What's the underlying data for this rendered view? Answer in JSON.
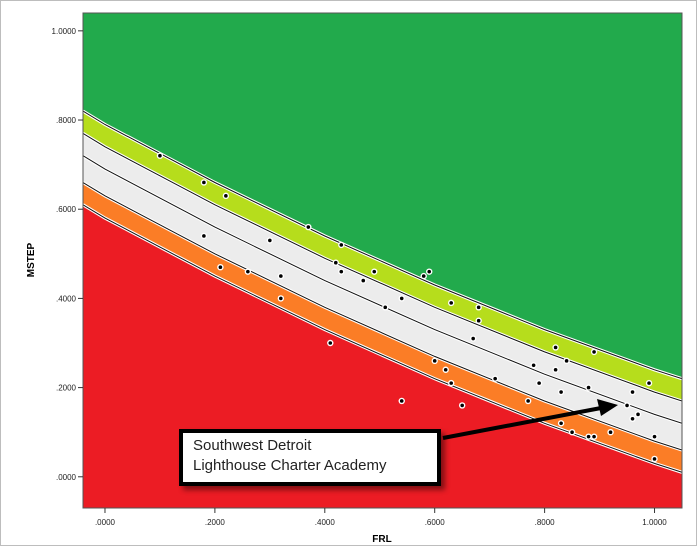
{
  "chart_data": {
    "type": "scatter",
    "title": "",
    "xlabel": "FRL",
    "ylabel": "MSTEP",
    "xlim": [
      -0.04,
      1.05
    ],
    "ylim": [
      -0.07,
      1.04
    ],
    "x_ticks": [
      0.0,
      0.2,
      0.4,
      0.6,
      0.8,
      1.0
    ],
    "x_tick_labels": [
      ".0000",
      ".2000",
      ".4000",
      ".6000",
      ".8000",
      "1.0000"
    ],
    "y_ticks": [
      0.0,
      0.2,
      0.4,
      0.6,
      0.8,
      1.0
    ],
    "y_tick_labels": [
      ".0000",
      ".2000",
      ".4000",
      ".6000",
      ".8000",
      "1.0000"
    ],
    "grid": false,
    "bands": {
      "top": "green",
      "upper_band": "yellow-green",
      "middle_band": "light gray",
      "lower_band": "orange",
      "bottom": "red"
    },
    "band_boundaries_at_x": {
      "x": [
        -0.04,
        0.0,
        0.2,
        0.4,
        0.6,
        0.8,
        1.0,
        1.05
      ],
      "green_upper": [
        0.82,
        0.79,
        0.66,
        0.54,
        0.43,
        0.33,
        0.24,
        0.22
      ],
      "yellow_lower": [
        0.77,
        0.74,
        0.61,
        0.49,
        0.38,
        0.28,
        0.19,
        0.17
      ],
      "center_line": [
        0.72,
        0.69,
        0.56,
        0.44,
        0.33,
        0.23,
        0.14,
        0.12
      ],
      "gray_lower": [
        0.66,
        0.63,
        0.5,
        0.38,
        0.27,
        0.17,
        0.08,
        0.06
      ],
      "orange_lower": [
        0.61,
        0.58,
        0.45,
        0.33,
        0.22,
        0.12,
        0.03,
        0.01
      ]
    },
    "points": [
      {
        "x": 0.1,
        "y": 0.72
      },
      {
        "x": 0.18,
        "y": 0.66
      },
      {
        "x": 0.22,
        "y": 0.63
      },
      {
        "x": 0.3,
        "y": 0.53
      },
      {
        "x": 0.37,
        "y": 0.56
      },
      {
        "x": 0.43,
        "y": 0.52
      },
      {
        "x": 0.42,
        "y": 0.48
      },
      {
        "x": 0.43,
        "y": 0.46
      },
      {
        "x": 0.47,
        "y": 0.44
      },
      {
        "x": 0.49,
        "y": 0.46
      },
      {
        "x": 0.54,
        "y": 0.4
      },
      {
        "x": 0.58,
        "y": 0.45
      },
      {
        "x": 0.59,
        "y": 0.46
      },
      {
        "x": 0.63,
        "y": 0.39
      },
      {
        "x": 0.68,
        "y": 0.38
      },
      {
        "x": 0.68,
        "y": 0.35
      },
      {
        "x": 0.18,
        "y": 0.54
      },
      {
        "x": 0.21,
        "y": 0.47
      },
      {
        "x": 0.26,
        "y": 0.46
      },
      {
        "x": 0.32,
        "y": 0.45
      },
      {
        "x": 0.32,
        "y": 0.4
      },
      {
        "x": 0.51,
        "y": 0.38
      },
      {
        "x": 0.67,
        "y": 0.31
      },
      {
        "x": 0.41,
        "y": 0.3
      },
      {
        "x": 0.6,
        "y": 0.26
      },
      {
        "x": 0.62,
        "y": 0.24
      },
      {
        "x": 0.63,
        "y": 0.21
      },
      {
        "x": 0.71,
        "y": 0.22
      },
      {
        "x": 0.54,
        "y": 0.17
      },
      {
        "x": 0.65,
        "y": 0.16
      },
      {
        "x": 0.77,
        "y": 0.17
      },
      {
        "x": 0.78,
        "y": 0.25
      },
      {
        "x": 0.79,
        "y": 0.21
      },
      {
        "x": 0.82,
        "y": 0.29
      },
      {
        "x": 0.82,
        "y": 0.24
      },
      {
        "x": 0.83,
        "y": 0.19
      },
      {
        "x": 0.84,
        "y": 0.26
      },
      {
        "x": 0.88,
        "y": 0.2
      },
      {
        "x": 0.89,
        "y": 0.28
      },
      {
        "x": 0.96,
        "y": 0.19
      },
      {
        "x": 0.95,
        "y": 0.16
      },
      {
        "x": 0.97,
        "y": 0.14
      },
      {
        "x": 0.96,
        "y": 0.13
      },
      {
        "x": 0.99,
        "y": 0.21
      },
      {
        "x": 1.0,
        "y": 0.09
      },
      {
        "x": 0.83,
        "y": 0.12
      },
      {
        "x": 0.85,
        "y": 0.1
      },
      {
        "x": 0.88,
        "y": 0.09
      },
      {
        "x": 0.89,
        "y": 0.09
      },
      {
        "x": 0.92,
        "y": 0.1
      },
      {
        "x": 1.0,
        "y": 0.04
      }
    ],
    "annotation": {
      "lines": [
        "Southwest Detroit",
        "Lighthouse Charter Academy"
      ],
      "points_to": {
        "x": 0.92,
        "y": 0.16
      }
    }
  },
  "colors": {
    "green": "#22aa4c",
    "yellow_green": "#b6dd1c",
    "gray": "#ececec",
    "orange": "#fb7d26",
    "red": "#ec1c24",
    "point": "#000000"
  }
}
